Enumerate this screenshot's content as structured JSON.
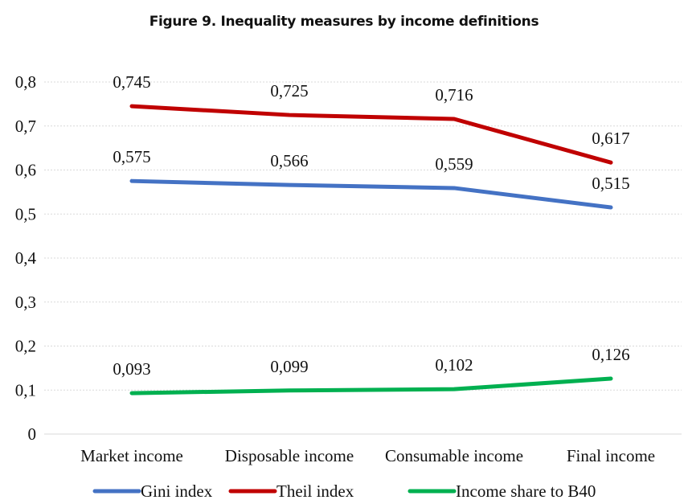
{
  "chart_data": {
    "type": "line",
    "title": "Figure 9. Inequality measures by income definitions",
    "categories": [
      "Market income",
      "Disposable income",
      "Consumable income",
      "Final income"
    ],
    "ylim": [
      0,
      0.8
    ],
    "yticks": [
      {
        "v": 0,
        "label": "0"
      },
      {
        "v": 0.1,
        "label": "0,1"
      },
      {
        "v": 0.2,
        "label": "0,2"
      },
      {
        "v": 0.3,
        "label": "0,3"
      },
      {
        "v": 0.4,
        "label": "0,4"
      },
      {
        "v": 0.5,
        "label": "0,5"
      },
      {
        "v": 0.6,
        "label": "0,6"
      },
      {
        "v": 0.7,
        "label": "0,7"
      },
      {
        "v": 0.8,
        "label": "0,8"
      }
    ],
    "grid": true,
    "legend_position": "bottom",
    "series": [
      {
        "name": "Gini index",
        "color": "#4472C4",
        "values": [
          0.575,
          0.566,
          0.559,
          0.515
        ],
        "labels": [
          "0,575",
          "0,566",
          "0,559",
          "0,515"
        ]
      },
      {
        "name": "Theil index",
        "color": "#C00000",
        "values": [
          0.745,
          0.725,
          0.716,
          0.617
        ],
        "labels": [
          "0,745",
          "0,725",
          "0,716",
          "0,617"
        ]
      },
      {
        "name": "Income share to B40",
        "color": "#00B050",
        "values": [
          0.093,
          0.099,
          0.102,
          0.126
        ],
        "labels": [
          "0,093",
          "0,099",
          "0,102",
          "0,126"
        ]
      }
    ]
  }
}
